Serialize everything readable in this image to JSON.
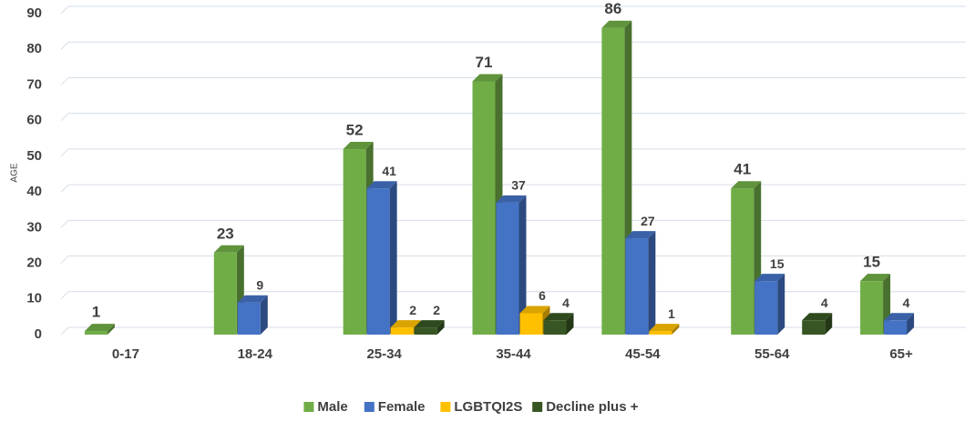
{
  "chart_data": {
    "type": "bar3d",
    "y_label": "AGE",
    "categories": [
      "0-17",
      "18-24",
      "25-34",
      "35-44",
      "45-54",
      "55-64",
      "65+"
    ],
    "series": [
      {
        "name": "Male",
        "color": "#70ad47",
        "values": [
          1,
          23,
          52,
          71,
          86,
          41,
          15
        ]
      },
      {
        "name": "Female",
        "color": "#4472c4",
        "values": [
          null,
          9,
          41,
          37,
          27,
          15,
          4
        ]
      },
      {
        "name": "LGBTQI2S",
        "color": "#ffc000",
        "values": [
          null,
          null,
          2,
          6,
          1,
          null,
          null
        ]
      },
      {
        "name": "Decline plus +",
        "color": "#375623",
        "values": [
          null,
          null,
          2,
          4,
          null,
          4,
          null
        ]
      }
    ],
    "ylim": [
      0,
      90
    ],
    "yticks": [
      0,
      10,
      20,
      30,
      40,
      50,
      60,
      70,
      80,
      90
    ],
    "grid": true,
    "legend": "bottom"
  }
}
